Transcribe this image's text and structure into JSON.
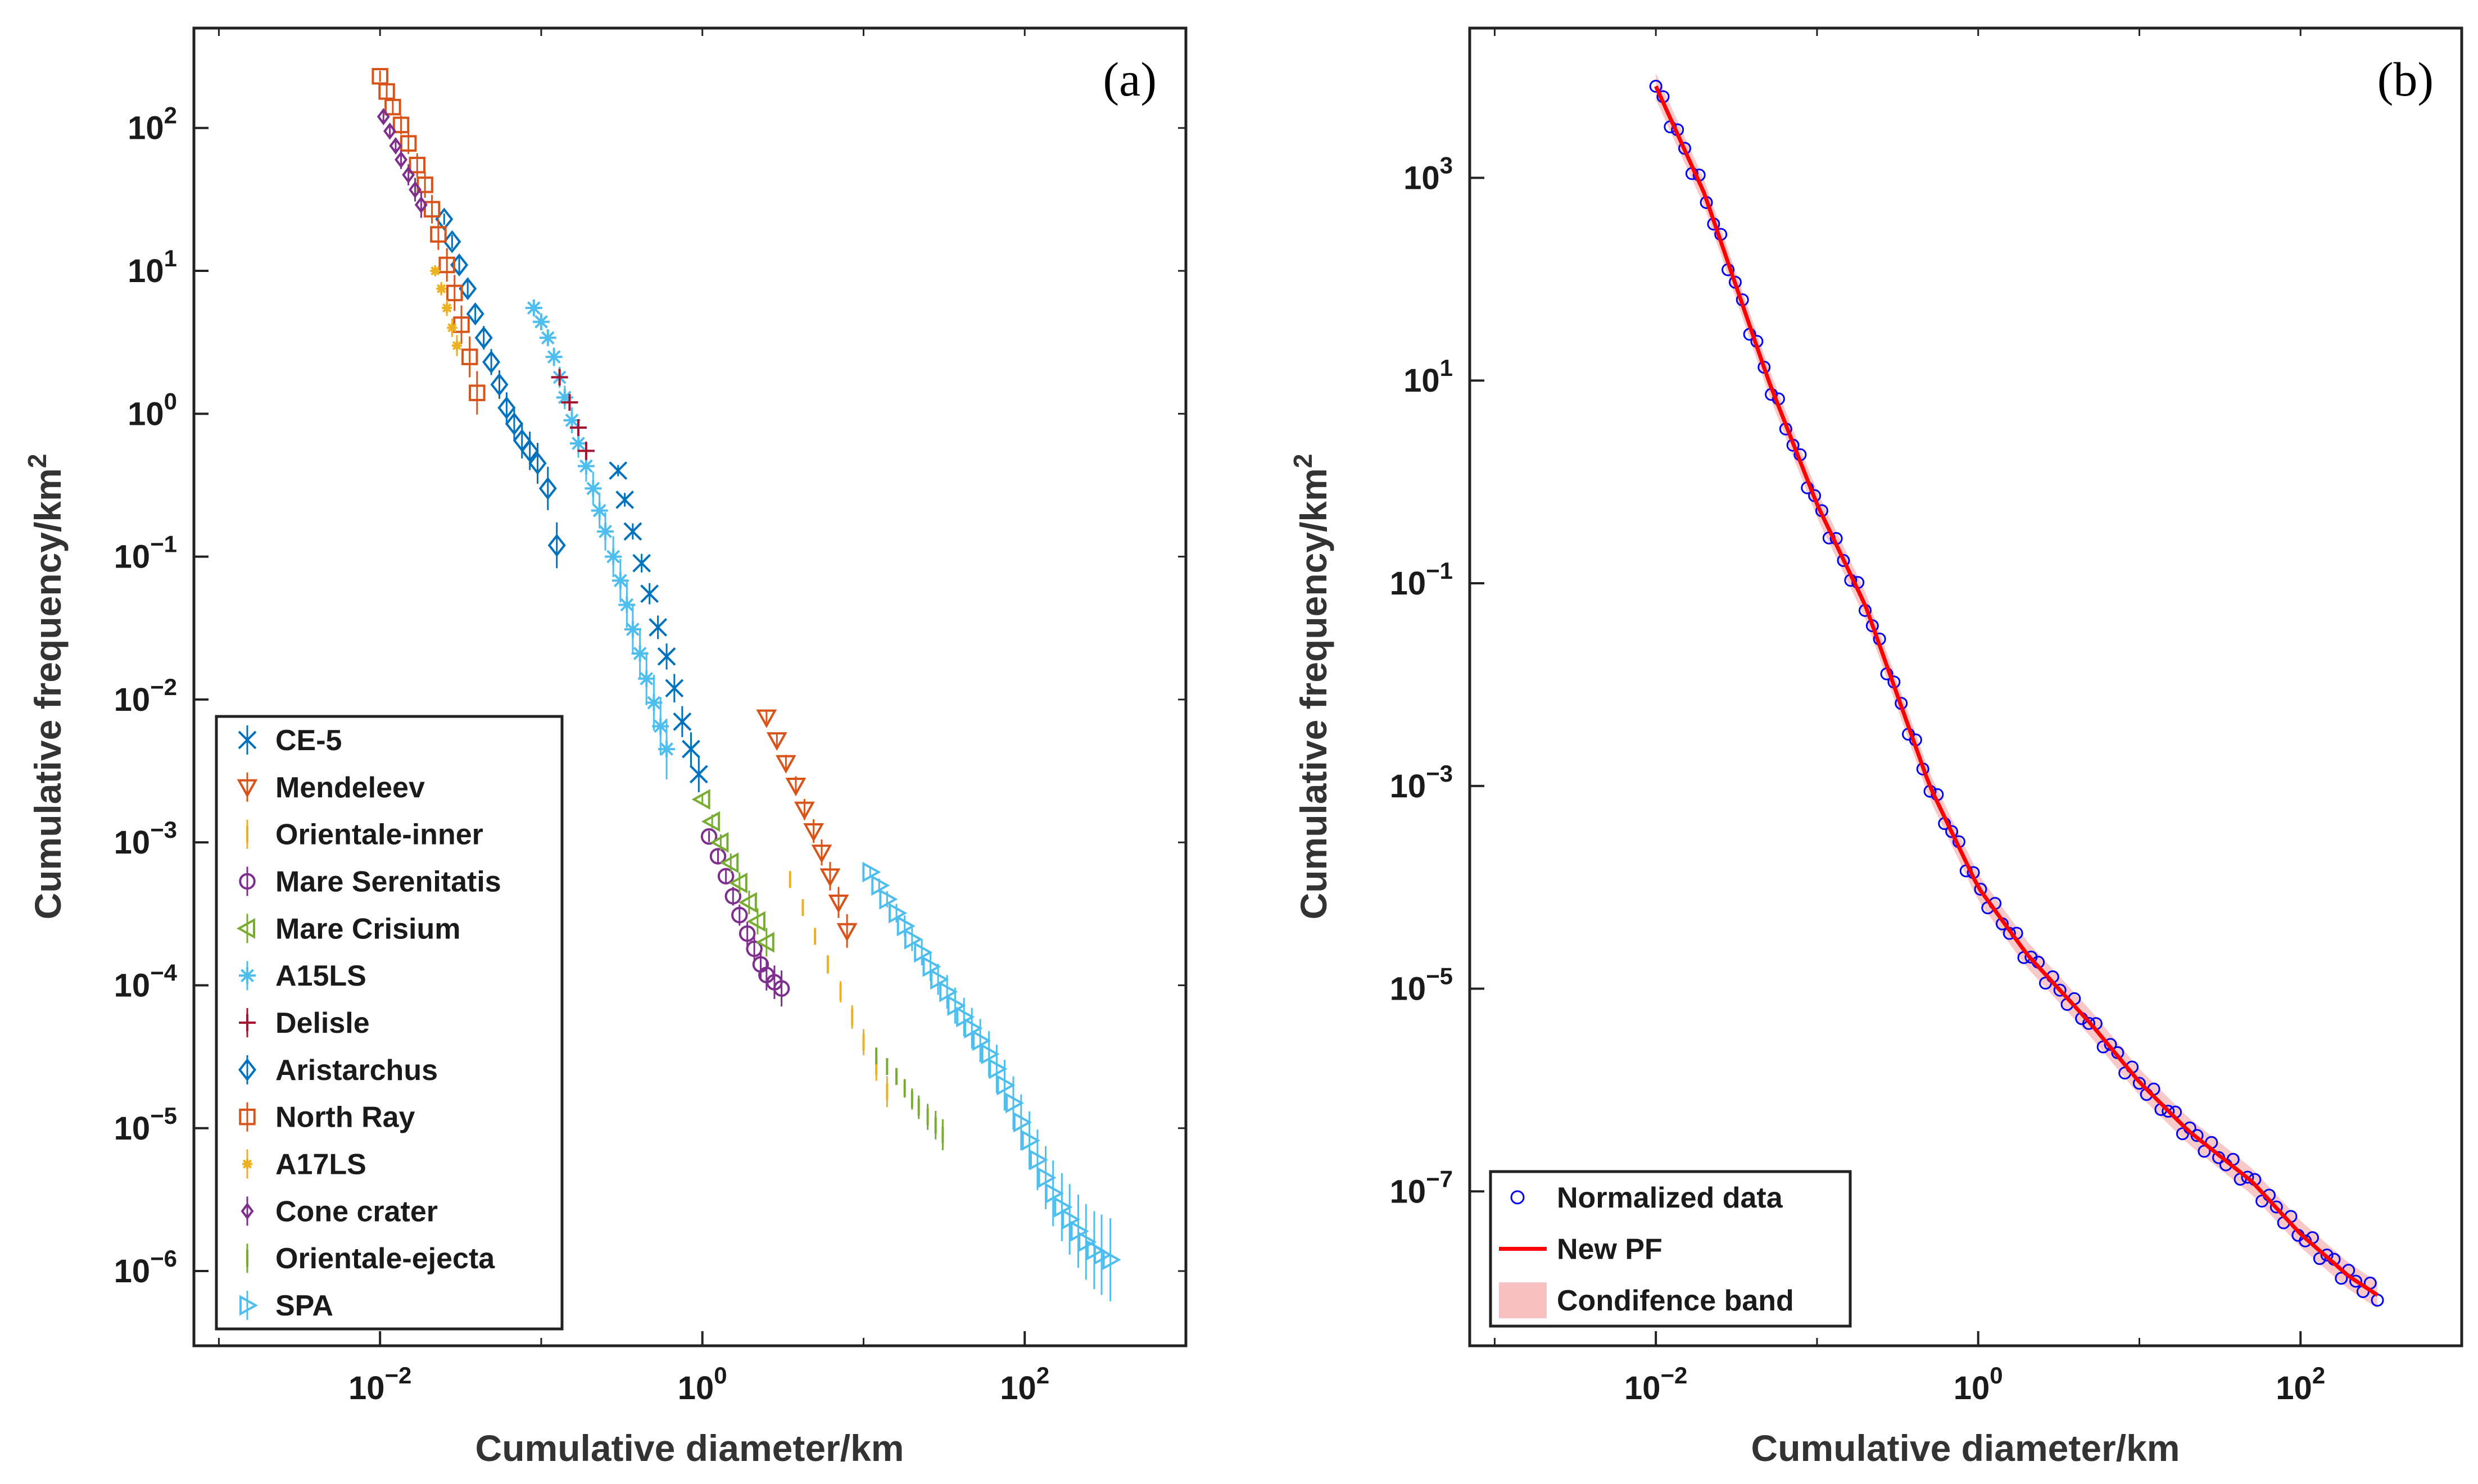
{
  "chart_data": [
    {
      "type": "scatter",
      "panel_label": "(a)",
      "xlabel": "Cumulative diameter/km",
      "ylabel": "Cumulative frequency/km",
      "ylabel_superscript": "2",
      "xscale": "log",
      "yscale": "log",
      "xlim": [
        0.0007,
        1000
      ],
      "ylim": [
        3e-07,
        500
      ],
      "x_ticks": [
        {
          "value": 0.01,
          "base": "10",
          "exp": "−2"
        },
        {
          "value": 1,
          "base": "10",
          "exp": "0"
        },
        {
          "value": 100,
          "base": "10",
          "exp": "2"
        }
      ],
      "y_ticks": [
        {
          "value": 1e-06,
          "base": "10",
          "exp": "−6"
        },
        {
          "value": 1e-05,
          "base": "10",
          "exp": "−5"
        },
        {
          "value": 0.0001,
          "base": "10",
          "exp": "−4"
        },
        {
          "value": 0.001,
          "base": "10",
          "exp": "−3"
        },
        {
          "value": 0.01,
          "base": "10",
          "exp": "−2"
        },
        {
          "value": 0.1,
          "base": "10",
          "exp": "−1"
        },
        {
          "value": 1,
          "base": "10",
          "exp": "0"
        },
        {
          "value": 10,
          "base": "10",
          "exp": "1"
        },
        {
          "value": 100,
          "base": "10",
          "exp": "2"
        }
      ],
      "grid": false,
      "legend_position": "bottom-left",
      "series": [
        {
          "name": "CE-5",
          "color": "#0072BD",
          "marker": "x",
          "x": [
            0.3,
            0.33,
            0.37,
            0.42,
            0.47,
            0.53,
            0.6,
            0.67,
            0.75,
            0.85,
            0.95
          ],
          "y": [
            0.4,
            0.25,
            0.15,
            0.09,
            0.055,
            0.032,
            0.02,
            0.012,
            0.007,
            0.0045,
            0.003
          ]
        },
        {
          "name": "Mendeleev",
          "color": "#D95319",
          "marker": "triangle-down",
          "x": [
            2.5,
            2.9,
            3.3,
            3.8,
            4.3,
            4.9,
            5.5,
            6.2,
            7.0,
            7.9
          ],
          "y": [
            0.0075,
            0.0052,
            0.0036,
            0.0025,
            0.0017,
            0.0012,
            0.00085,
            0.00058,
            0.00038,
            0.00024
          ]
        },
        {
          "name": "Orientale-inner",
          "color": "#EDB120",
          "marker": "vline",
          "x": [
            3.5,
            4.2,
            5.0,
            6.0,
            7.2,
            8.5,
            10,
            12,
            14
          ],
          "y": [
            0.00055,
            0.00035,
            0.00022,
            0.00014,
            9e-05,
            6e-05,
            4e-05,
            2.7e-05,
            1.8e-05
          ]
        },
        {
          "name": "Mare Serenitatis",
          "color": "#7E2F8E",
          "marker": "circle",
          "x": [
            1.1,
            1.25,
            1.4,
            1.55,
            1.7,
            1.9,
            2.1,
            2.3,
            2.5,
            2.8,
            3.1
          ],
          "y": [
            0.0011,
            0.0008,
            0.00058,
            0.00042,
            0.00031,
            0.00023,
            0.00018,
            0.00014,
            0.000118,
            0.000105,
            9.5e-05
          ]
        },
        {
          "name": "Mare Crisium",
          "color": "#77AC30",
          "marker": "triangle-left",
          "x": [
            1.0,
            1.15,
            1.3,
            1.5,
            1.7,
            1.95,
            2.2,
            2.5
          ],
          "y": [
            0.002,
            0.0014,
            0.001,
            0.00072,
            0.00052,
            0.00038,
            0.00028,
            0.0002
          ]
        },
        {
          "name": "A15LS",
          "color": "#4DBEEE",
          "marker": "asterisk",
          "x": [
            0.09,
            0.1,
            0.11,
            0.12,
            0.13,
            0.14,
            0.155,
            0.17,
            0.19,
            0.21,
            0.23,
            0.25,
            0.28,
            0.31,
            0.34,
            0.37,
            0.41,
            0.45,
            0.5,
            0.55,
            0.6
          ],
          "y": [
            5.5,
            4.4,
            3.4,
            2.5,
            1.8,
            1.3,
            0.9,
            0.62,
            0.43,
            0.3,
            0.21,
            0.15,
            0.1,
            0.068,
            0.046,
            0.031,
            0.021,
            0.014,
            0.0095,
            0.0065,
            0.0045
          ]
        },
        {
          "name": "Delisle",
          "color": "#A2142F",
          "marker": "plus",
          "x": [
            0.13,
            0.15,
            0.17,
            0.19
          ],
          "y": [
            1.8,
            1.2,
            0.8,
            0.55
          ]
        },
        {
          "name": "Aristarchus",
          "color": "#0072BD",
          "marker": "diamond",
          "x": [
            0.025,
            0.028,
            0.031,
            0.035,
            0.039,
            0.044,
            0.049,
            0.055,
            0.061,
            0.068,
            0.076,
            0.085,
            0.095,
            0.11,
            0.125
          ],
          "y": [
            23,
            16,
            11,
            7.5,
            5,
            3.4,
            2.3,
            1.6,
            1.1,
            0.85,
            0.65,
            0.55,
            0.45,
            0.3,
            0.12
          ]
        },
        {
          "name": "North Ray",
          "color": "#D95319",
          "marker": "square",
          "x": [
            0.01,
            0.011,
            0.012,
            0.0135,
            0.015,
            0.017,
            0.019,
            0.021,
            0.023,
            0.026,
            0.029,
            0.032,
            0.036,
            0.04
          ],
          "y": [
            230,
            180,
            140,
            105,
            78,
            55,
            40,
            27,
            18,
            11,
            7,
            4.2,
            2.5,
            1.4
          ]
        },
        {
          "name": "A17LS",
          "color": "#EDB120",
          "marker": "star",
          "x": [
            0.022,
            0.024,
            0.026,
            0.028,
            0.03
          ],
          "y": [
            10,
            7.5,
            5.5,
            4,
            3
          ]
        },
        {
          "name": "Cone crater",
          "color": "#7E2F8E",
          "marker": "diamond-small",
          "x": [
            0.0105,
            0.0115,
            0.0125,
            0.0135,
            0.015,
            0.0165,
            0.018
          ],
          "y": [
            120,
            95,
            75,
            60,
            47,
            37,
            29
          ]
        },
        {
          "name": "Orientale-ejecta",
          "color": "#77AC30",
          "marker": "vline",
          "x": [
            12,
            14,
            16,
            18,
            20,
            22,
            25,
            28,
            31
          ],
          "y": [
            3.2e-05,
            2.7e-05,
            2.3e-05,
            1.9e-05,
            1.6e-05,
            1.4e-05,
            1.2e-05,
            1.05e-05,
            9e-06
          ]
        },
        {
          "name": "SPA",
          "color": "#4DBEEE",
          "marker": "triangle-right",
          "x": [
            11,
            12.5,
            14,
            16,
            18,
            20,
            23,
            26,
            29,
            33,
            37,
            42,
            47,
            53,
            60,
            67,
            75,
            85,
            95,
            107,
            120,
            135,
            150,
            170,
            190,
            215,
            240,
            270,
            300,
            340
          ],
          "y": [
            0.00062,
            0.0005,
            0.0004,
            0.00032,
            0.00026,
            0.00021,
            0.00017,
            0.000135,
            0.00011,
            9e-05,
            7.2e-05,
            6e-05,
            5e-05,
            4.1e-05,
            3.3e-05,
            2.6e-05,
            2e-05,
            1.5e-05,
            1.1e-05,
            8.2e-06,
            6e-06,
            4.5e-06,
            3.5e-06,
            2.8e-06,
            2.3e-06,
            1.9e-06,
            1.6e-06,
            1.4e-06,
            1.3e-06,
            1.2e-06
          ]
        }
      ]
    },
    {
      "type": "scatter",
      "panel_label": "(b)",
      "xlabel": "Cumulative diameter/km",
      "ylabel": "Cumulative frequency/km",
      "ylabel_superscript": "2",
      "xscale": "log",
      "yscale": "log",
      "xlim": [
        0.0007,
        1000
      ],
      "ylim": [
        3e-09,
        30000
      ],
      "x_ticks": [
        {
          "value": 0.01,
          "base": "10",
          "exp": "−2"
        },
        {
          "value": 1,
          "base": "10",
          "exp": "0"
        },
        {
          "value": 100,
          "base": "10",
          "exp": "2"
        }
      ],
      "y_ticks": [
        {
          "value": 1e-07,
          "base": "10",
          "exp": "−7"
        },
        {
          "value": 1e-05,
          "base": "10",
          "exp": "−5"
        },
        {
          "value": 0.001,
          "base": "10",
          "exp": "−3"
        },
        {
          "value": 0.1,
          "base": "10",
          "exp": "−1"
        },
        {
          "value": 10,
          "base": "10",
          "exp": "1"
        },
        {
          "value": 1000,
          "base": "10",
          "exp": "3"
        }
      ],
      "grid": false,
      "legend_position": "bottom-left",
      "curve_nodes": {
        "x": [
          0.01,
          0.02,
          0.05,
          0.1,
          0.2,
          0.5,
          1,
          2,
          5,
          10,
          20,
          50,
          100,
          200,
          300
        ],
        "y": [
          8000,
          700,
          10,
          0.6,
          0.06,
          0.001,
          0.0001,
          2.2e-05,
          4.5e-06,
          1.2e-06,
          4e-07,
          1.25e-07,
          3.8e-08,
          1.45e-08,
          9.5e-09
        ]
      },
      "series": [
        {
          "name": "Normalized data",
          "color": "#0000FF",
          "marker": "circle"
        },
        {
          "name": "New PF",
          "color": "#FF0000",
          "marker": "line"
        },
        {
          "name": "Condifence band",
          "color": "#F8C0C0",
          "marker": "band"
        }
      ]
    }
  ]
}
